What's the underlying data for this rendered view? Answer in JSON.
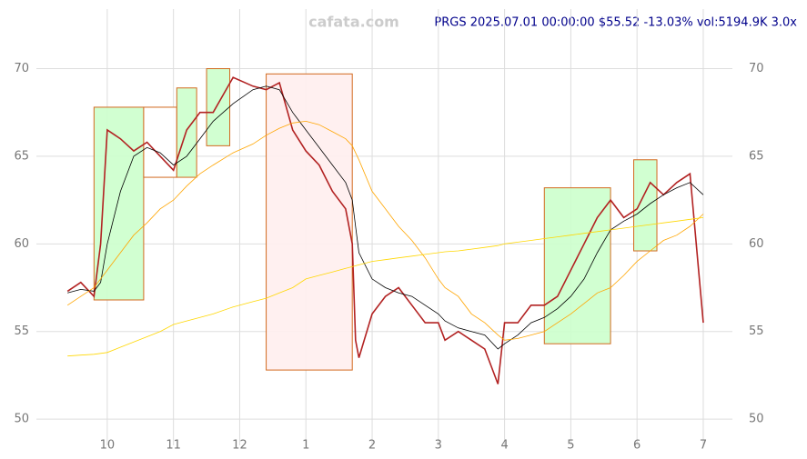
{
  "chart_data": {
    "type": "line",
    "title": "PRGS 2025.07.01 00:00:00 $55.52 -13.03% vol:5194.9K 3.0x",
    "watermark": "cafata.com",
    "x": [
      9.4,
      9.6,
      9.8,
      9.9,
      10.0,
      10.2,
      10.4,
      10.6,
      10.8,
      11.0,
      11.2,
      11.4,
      11.6,
      11.9,
      12.2,
      12.4,
      12.6,
      12.8,
      13.0,
      13.2,
      13.4,
      13.6,
      13.7,
      13.75,
      13.8,
      14.0,
      14.2,
      14.4,
      14.6,
      14.8,
      15.0,
      15.1,
      15.3,
      15.5,
      15.7,
      15.9,
      16.0,
      16.2,
      16.4,
      16.6,
      16.8,
      17.0,
      17.2,
      17.4,
      17.6,
      17.8,
      18.0,
      18.2,
      18.4,
      18.6,
      18.8,
      19.0
    ],
    "series": [
      {
        "color": "#b22222",
        "values": [
          57.3,
          57.8,
          57.0,
          60,
          66.5,
          66.0,
          65.3,
          65.8,
          65.0,
          64.2,
          66.5,
          67.5,
          67.5,
          69.5,
          69.0,
          68.8,
          69.2,
          66.5,
          65.3,
          64.5,
          63.0,
          62.0,
          60,
          54.5,
          53.5,
          56.0,
          57.0,
          57.5,
          56.5,
          55.5,
          55.5,
          54.5,
          55.0,
          54.5,
          54.0,
          52.0,
          55.5,
          55.5,
          56.5,
          56.5,
          57.0,
          58.5,
          60.0,
          61.5,
          62.5,
          61.5,
          62.0,
          63.5,
          62.8,
          63.5,
          64.0,
          55.5
        ]
      },
      {
        "color": "#000000",
        "values": [
          57.2,
          57.4,
          57.3,
          57.8,
          60,
          63,
          65,
          65.5,
          65.2,
          64.5,
          65,
          66,
          67,
          68,
          68.8,
          69,
          68.8,
          67.5,
          66.5,
          65.5,
          64.5,
          63.5,
          62.5,
          61,
          59.5,
          58,
          57.5,
          57.2,
          57,
          56.5,
          56,
          55.6,
          55.2,
          55,
          54.8,
          54,
          54.3,
          54.8,
          55.5,
          55.8,
          56.3,
          57,
          58,
          59.5,
          60.8,
          61.3,
          61.7,
          62.3,
          62.8,
          63.2,
          63.5,
          62.8
        ]
      },
      {
        "color": "#ffa500",
        "values": [
          56.5,
          57,
          57.5,
          58,
          58.5,
          59.5,
          60.5,
          61.2,
          62,
          62.5,
          63.3,
          64,
          64.5,
          65.2,
          65.7,
          66.2,
          66.6,
          66.9,
          67,
          66.8,
          66.4,
          66,
          65.6,
          65.2,
          64.8,
          63,
          62,
          61,
          60.2,
          59.2,
          58,
          57.5,
          57,
          56,
          55.5,
          54.8,
          54.5,
          54.6,
          54.8,
          55,
          55.5,
          56,
          56.6,
          57.2,
          57.5,
          58.2,
          59,
          59.6,
          60.2,
          60.5,
          61,
          61.7
        ]
      },
      {
        "color": "#ffd700",
        "values": [
          53.6,
          53.65,
          53.7,
          53.75,
          53.8,
          54.1,
          54.4,
          54.7,
          55,
          55.4,
          55.6,
          55.8,
          56,
          56.4,
          56.7,
          56.9,
          57.2,
          57.5,
          58,
          58.2,
          58.4,
          58.6,
          58.7,
          58.75,
          58.8,
          59,
          59.1,
          59.2,
          59.3,
          59.4,
          59.5,
          59.55,
          59.6,
          59.7,
          59.8,
          59.9,
          60,
          60.1,
          60.2,
          60.3,
          60.4,
          60.5,
          60.6,
          60.7,
          60.8,
          60.9,
          61,
          61.1,
          61.2,
          61.3,
          61.4,
          61.5
        ]
      }
    ],
    "zones": [
      {
        "x": [
          9.8,
          10.55
        ],
        "y": [
          56.8,
          67.8
        ],
        "color": "#ccffcc"
      },
      {
        "x": [
          10.55,
          11.05
        ],
        "y": [
          63.8,
          67.8
        ],
        "color": "#ffffff"
      },
      {
        "x": [
          11.05,
          11.35
        ],
        "y": [
          63.8,
          68.9
        ],
        "color": "#ccffcc"
      },
      {
        "x": [
          11.5,
          11.85
        ],
        "y": [
          65.6,
          70.0
        ],
        "color": "#ccffcc"
      },
      {
        "x": [
          12.4,
          13.7
        ],
        "y": [
          52.8,
          69.7
        ],
        "color": "#ffeeee"
      },
      {
        "x": [
          16.6,
          17.6
        ],
        "y": [
          54.3,
          63.2
        ],
        "color": "#ccffcc"
      },
      {
        "x": [
          17.95,
          18.3
        ],
        "y": [
          59.6,
          64.8
        ],
        "color": "#ccffcc"
      }
    ],
    "xlim": [
      8.93,
      19.44
    ],
    "xticks": [
      10,
      11,
      12,
      {
        "value": 13,
        "label": "1"
      },
      {
        "value": 14,
        "label": "2"
      },
      {
        "value": 15,
        "label": "3"
      },
      {
        "value": 16,
        "label": "4"
      },
      {
        "value": 17,
        "label": "5"
      },
      {
        "value": 18,
        "label": "6"
      },
      {
        "value": 19,
        "label": "7"
      }
    ],
    "ylim": [
      48.5,
      73.4
    ],
    "yticks": [
      50,
      55,
      60,
      65,
      70
    ],
    "grid": true
  }
}
